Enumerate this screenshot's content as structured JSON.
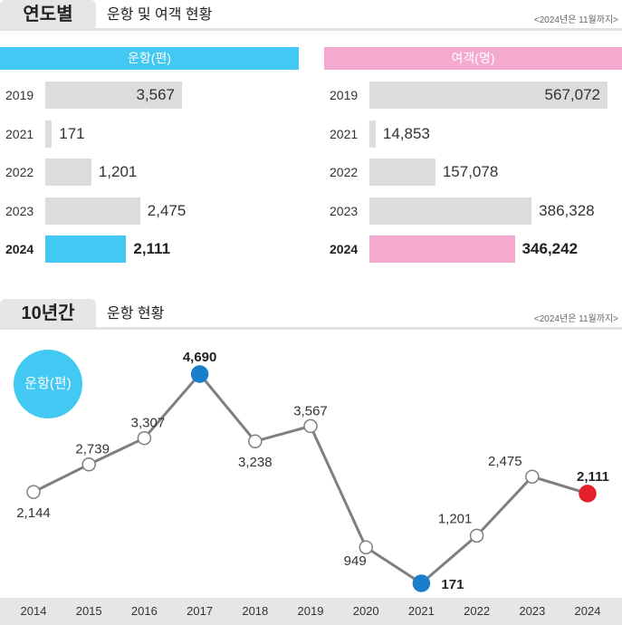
{
  "header1": {
    "tab": "연도별",
    "title": "운항 및 여객 현황",
    "note": "<2024년은 11월까지>"
  },
  "flights_panel": {
    "title": "운항(편)"
  },
  "passengers_panel": {
    "title": "여객(명)"
  },
  "header2": {
    "tab": "10년간",
    "title": "운항 현황",
    "note": "<2024년은 11월까지>"
  },
  "line_panel": {
    "badge": "운항(편)"
  },
  "colors": {
    "flights": "#42c8f2",
    "passengers": "#f4a9cf",
    "bar_gray": "#dcdcdc",
    "line": "#7f7f7f",
    "peak": "#1a7fcb",
    "latest": "#e5202a"
  },
  "chart_data": [
    {
      "type": "bar",
      "title": "운항(편)",
      "orientation": "horizontal",
      "categories": [
        "2019",
        "2021",
        "2022",
        "2023",
        "2024"
      ],
      "values": [
        3567,
        171,
        1201,
        2475,
        2111
      ],
      "labels": [
        "3,567",
        "171",
        "1,201",
        "2,475",
        "2,111"
      ],
      "highlight": "2024"
    },
    {
      "type": "bar",
      "title": "여객(명)",
      "orientation": "horizontal",
      "categories": [
        "2019",
        "2021",
        "2022",
        "2023",
        "2024"
      ],
      "values": [
        567072,
        14853,
        157078,
        386328,
        346242
      ],
      "labels": [
        "567,072",
        "14,853",
        "157,078",
        "386,328",
        "346,242"
      ],
      "highlight": "2024"
    },
    {
      "type": "line",
      "title": "운항(편)",
      "x": [
        "2014",
        "2015",
        "2016",
        "2017",
        "2018",
        "2019",
        "2020",
        "2021",
        "2022",
        "2023",
        "2024"
      ],
      "values": [
        2144,
        2739,
        3307,
        4690,
        3238,
        3567,
        949,
        171,
        1201,
        2475,
        2111
      ],
      "labels": [
        "2,144",
        "2,739",
        "3,307",
        "4,690",
        "3,238",
        "3,567",
        "949",
        "171",
        "1,201",
        "2,475",
        "2,111"
      ],
      "highlight": {
        "max": "2017",
        "min": "2021",
        "latest": "2024"
      }
    }
  ]
}
